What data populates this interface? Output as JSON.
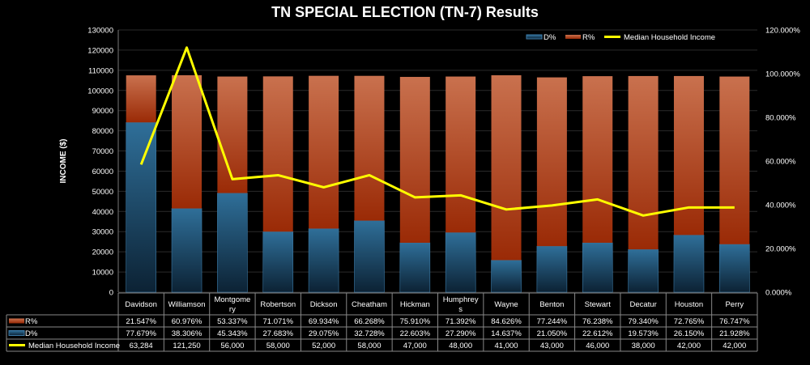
{
  "chart_data": {
    "type": "bar",
    "stacked": true,
    "title": "TN SPECIAL ELECTION (TN-7) Results",
    "ylabel": "INCOME ($)",
    "ylim": [
      0,
      130000
    ],
    "y_ticks": [
      "0",
      "10000",
      "20000",
      "30000",
      "40000",
      "50000",
      "60000",
      "70000",
      "80000",
      "90000",
      "100000",
      "110000",
      "120000",
      "130000"
    ],
    "y2lim": [
      0,
      120
    ],
    "y2_ticks": [
      "0.000%",
      "20.000%",
      "40.000%",
      "60.000%",
      "80.000%",
      "100.000%",
      "120.000%"
    ],
    "grid": true,
    "legend_position": "top-right",
    "categories": [
      "Davidson",
      "Williamson",
      "Montgomery",
      "Robertson",
      "Dickson",
      "Cheatham",
      "Hickman",
      "Humphreys",
      "Wayne",
      "Benton",
      "Stewart",
      "Decatur",
      "Houston",
      "Perry"
    ],
    "category_labels": [
      "Davidson",
      "Williamson",
      "Montgome ry",
      "Robertson",
      "Dickson",
      "Cheatham",
      "Hickman",
      "Humphrey s",
      "Wayne",
      "Benton",
      "Stewart",
      "Decatur",
      "Houston",
      "Perry"
    ],
    "series": [
      {
        "name": "D%",
        "type": "bar",
        "axis": "right",
        "color": "#2e6a92",
        "values": [
          77.679,
          38.306,
          45.343,
          27.683,
          29.075,
          32.728,
          22.603,
          27.29,
          14.637,
          21.05,
          22.612,
          19.573,
          26.15,
          21.928
        ],
        "labels": [
          "77.679%",
          "38.306%",
          "45.343%",
          "27.683%",
          "29.075%",
          "32.728%",
          "22.603%",
          "27.290%",
          "14.637%",
          "21.050%",
          "22.612%",
          "19.573%",
          "26.150%",
          "21.928%"
        ]
      },
      {
        "name": "R%",
        "type": "bar",
        "axis": "right",
        "color": "#c0461c",
        "values": [
          21.547,
          60.976,
          53.337,
          71.071,
          69.934,
          66.268,
          75.91,
          71.392,
          84.626,
          77.244,
          76.238,
          79.34,
          72.765,
          76.747
        ],
        "labels": [
          "21.547%",
          "60.976%",
          "53.337%",
          "71.071%",
          "69.934%",
          "66.268%",
          "75.910%",
          "71.392%",
          "84.626%",
          "77.244%",
          "76.238%",
          "79.340%",
          "72.765%",
          "76.747%"
        ]
      },
      {
        "name": "Median Household Income",
        "type": "line",
        "axis": "left",
        "color": "#ffff00",
        "values": [
          63284,
          121250,
          56000,
          58000,
          52000,
          58000,
          47000,
          48000,
          41000,
          43000,
          46000,
          38000,
          42000,
          42000
        ],
        "labels": [
          "63,284",
          "121,250",
          "56,000",
          "58,000",
          "52,000",
          "58,000",
          "47,000",
          "48,000",
          "41,000",
          "43,000",
          "46,000",
          "38,000",
          "42,000",
          "42,000"
        ]
      }
    ],
    "table_row_order": [
      "R%",
      "D%",
      "Median Household Income"
    ]
  }
}
